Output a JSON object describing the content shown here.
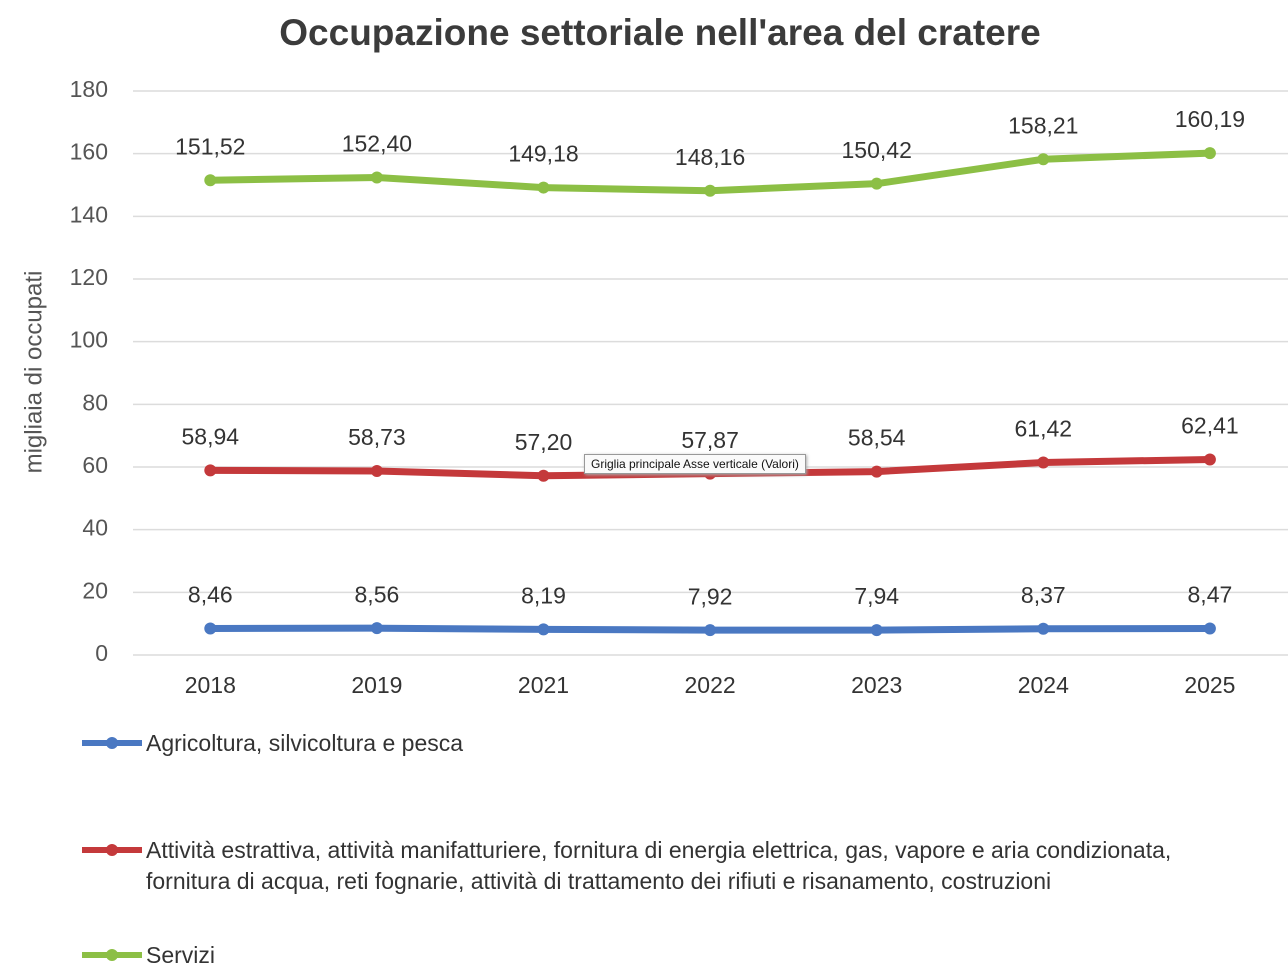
{
  "chart_data": {
    "type": "line",
    "title": "Occupazione settoriale nell'area del cratere",
    "y_label": "migliaia di occupati",
    "annotation": "Griglia principale Asse verticale (Valori)",
    "categories": [
      "2018",
      "2019",
      "2021",
      "2022",
      "2023",
      "2024",
      "2025"
    ],
    "series": [
      {
        "name": "Agricoltura, silvicoltura e pesca",
        "color": "#4a78c2",
        "values": [
          8.46,
          8.56,
          8.19,
          7.92,
          7.94,
          8.37,
          8.47
        ],
        "value_labels": [
          "8,46",
          "8,56",
          "8,19",
          "7,92",
          "7,94",
          "8,37",
          "8,47"
        ]
      },
      {
        "name": "Attività estrattiva, attività manifatturiere, fornitura di energia elettrica, gas, vapore e aria condizionata, fornitura di acqua, reti fognarie, attività di trattamento dei rifiuti e risanamento, costruzioni",
        "color": "#c4393b",
        "values": [
          58.94,
          58.73,
          57.2,
          57.87,
          58.54,
          61.42,
          62.41
        ],
        "value_labels": [
          "58,94",
          "58,73",
          "57,20",
          "57,87",
          "58,54",
          "61,42",
          "62,41"
        ]
      },
      {
        "name": "Servizi",
        "color": "#8cbf45",
        "values": [
          151.52,
          152.4,
          149.18,
          148.16,
          150.42,
          158.21,
          160.19
        ],
        "value_labels": [
          "151,52",
          "152,40",
          "149,18",
          "148,16",
          "150,42",
          "158,21",
          "160,19"
        ]
      }
    ],
    "ylim": [
      0,
      180
    ],
    "yticks": [
      0,
      20,
      40,
      60,
      80,
      100,
      120,
      140,
      160,
      180
    ],
    "grid": true
  }
}
